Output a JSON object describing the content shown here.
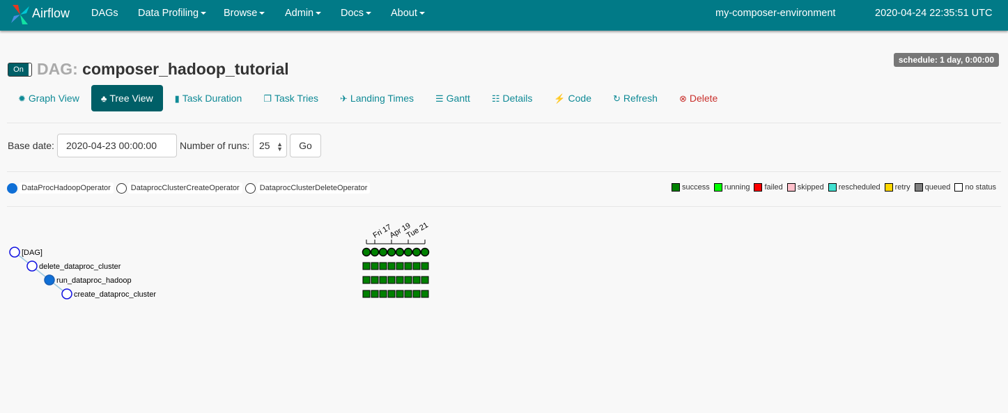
{
  "nav": {
    "brand": "Airflow",
    "items": [
      {
        "label": "DAGs",
        "dropdown": false
      },
      {
        "label": "Data Profiling",
        "dropdown": true
      },
      {
        "label": "Browse",
        "dropdown": true
      },
      {
        "label": "Admin",
        "dropdown": true
      },
      {
        "label": "Docs",
        "dropdown": true
      },
      {
        "label": "About",
        "dropdown": true
      }
    ],
    "environment": "my-composer-environment",
    "clock": "2020-04-24 22:35:51 UTC"
  },
  "dag": {
    "toggle": "On",
    "prefix": "DAG:",
    "name": "composer_hadoop_tutorial",
    "schedule": "schedule: 1 day, 0:00:00"
  },
  "tabs": [
    {
      "label": "Graph View",
      "icon": "✹"
    },
    {
      "label": "Tree View",
      "icon": "♣",
      "active": true
    },
    {
      "label": "Task Duration",
      "icon": "▮"
    },
    {
      "label": "Task Tries",
      "icon": "❐"
    },
    {
      "label": "Landing Times",
      "icon": "✈"
    },
    {
      "label": "Gantt",
      "icon": "☰"
    },
    {
      "label": "Details",
      "icon": "☷"
    },
    {
      "label": "Code",
      "icon": "⚡"
    },
    {
      "label": "Refresh",
      "icon": "↻"
    },
    {
      "label": "Delete",
      "icon": "⊗"
    }
  ],
  "form": {
    "base_date_label": "Base date:",
    "base_date": "2020-04-23 00:00:00",
    "runs_label": "Number of runs:",
    "runs": "25",
    "go": "Go"
  },
  "operators": [
    {
      "label": "DataProcHadoopOperator",
      "color": "#0f6fd6"
    },
    {
      "label": "DataprocClusterCreateOperator",
      "color": "#ffffff"
    },
    {
      "label": "DataprocClusterDeleteOperator",
      "color": "#ffffff"
    }
  ],
  "legend": [
    {
      "label": "success",
      "color": "#008000"
    },
    {
      "label": "running",
      "color": "#00ff00"
    },
    {
      "label": "failed",
      "color": "#ff0000"
    },
    {
      "label": "skipped",
      "color": "#ffc0cb"
    },
    {
      "label": "rescheduled",
      "color": "#40e0d0"
    },
    {
      "label": "retry",
      "color": "#ffd700"
    },
    {
      "label": "queued",
      "color": "#808080"
    },
    {
      "label": "no status",
      "color": "#ffffff"
    }
  ],
  "tree": {
    "date_ticks": [
      "Fri 17",
      "Apr 19",
      "Tue 21"
    ],
    "nodes": [
      {
        "label": "[DAG]",
        "depth": 0,
        "fill": "#ffffff"
      },
      {
        "label": "delete_dataproc_cluster",
        "depth": 1,
        "fill": "#ffffff"
      },
      {
        "label": "run_dataproc_hadoop",
        "depth": 2,
        "fill": "#0f6fd6"
      },
      {
        "label": "create_dataproc_cluster",
        "depth": 3,
        "fill": "#ffffff"
      }
    ],
    "runs": 8,
    "states": [
      [
        "success",
        "success",
        "success",
        "success",
        "success",
        "success",
        "success",
        "success"
      ],
      [
        "success",
        "success",
        "success",
        "success",
        "success",
        "success",
        "success",
        "success"
      ],
      [
        "success",
        "success",
        "success",
        "success",
        "success",
        "success",
        "success",
        "success"
      ],
      [
        "success",
        "success",
        "success",
        "success",
        "success",
        "success",
        "success",
        "success"
      ]
    ]
  }
}
